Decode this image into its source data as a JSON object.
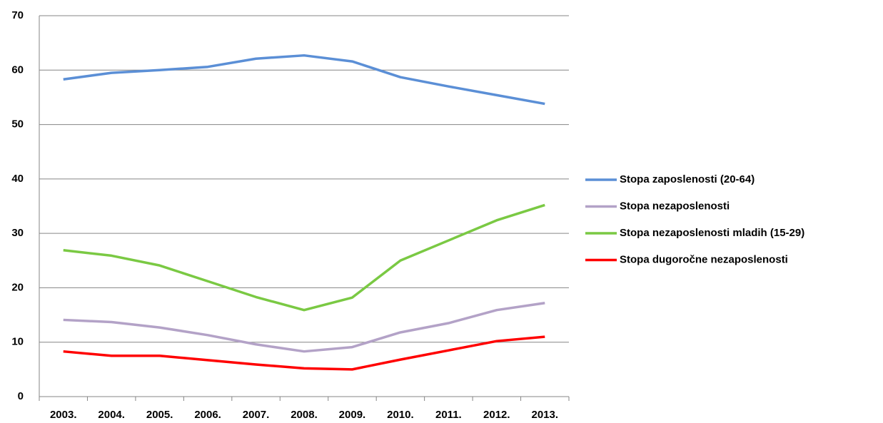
{
  "chart_data": {
    "type": "line",
    "categories": [
      "2003.",
      "2004.",
      "2005.",
      "2006.",
      "2007.",
      "2008.",
      "2009.",
      "2010.",
      "2011.",
      "2012.",
      "2013."
    ],
    "series": [
      {
        "name": "Stopa zaposlenosti (20-64)",
        "color": "#5b8fd6",
        "values": [
          58.3,
          59.5,
          60.0,
          60.6,
          62.1,
          62.7,
          61.6,
          58.7,
          57.0,
          55.4,
          53.8
        ]
      },
      {
        "name": "Stopa nezaposlenosti",
        "color": "#b3a2c7",
        "values": [
          14.1,
          13.7,
          12.7,
          11.3,
          9.6,
          8.3,
          9.1,
          11.8,
          13.5,
          15.9,
          17.2
        ]
      },
      {
        "name": "Stopa nezaposlenosti mladih (15-29)",
        "color": "#7ac943",
        "values": [
          26.9,
          25.9,
          24.1,
          21.2,
          18.3,
          15.9,
          18.2,
          25.0,
          28.7,
          32.4,
          35.2
        ]
      },
      {
        "name": "Stopa dugoročne nezaposlenosti",
        "color": "#ff0000",
        "values": [
          8.3,
          7.5,
          7.5,
          6.7,
          5.9,
          5.2,
          5.0,
          6.8,
          8.5,
          10.2,
          11.0
        ]
      }
    ],
    "ylim": [
      0,
      70
    ],
    "yticks": [
      0,
      10,
      20,
      30,
      40,
      50,
      60,
      70
    ],
    "grid": true,
    "legend": "right"
  }
}
